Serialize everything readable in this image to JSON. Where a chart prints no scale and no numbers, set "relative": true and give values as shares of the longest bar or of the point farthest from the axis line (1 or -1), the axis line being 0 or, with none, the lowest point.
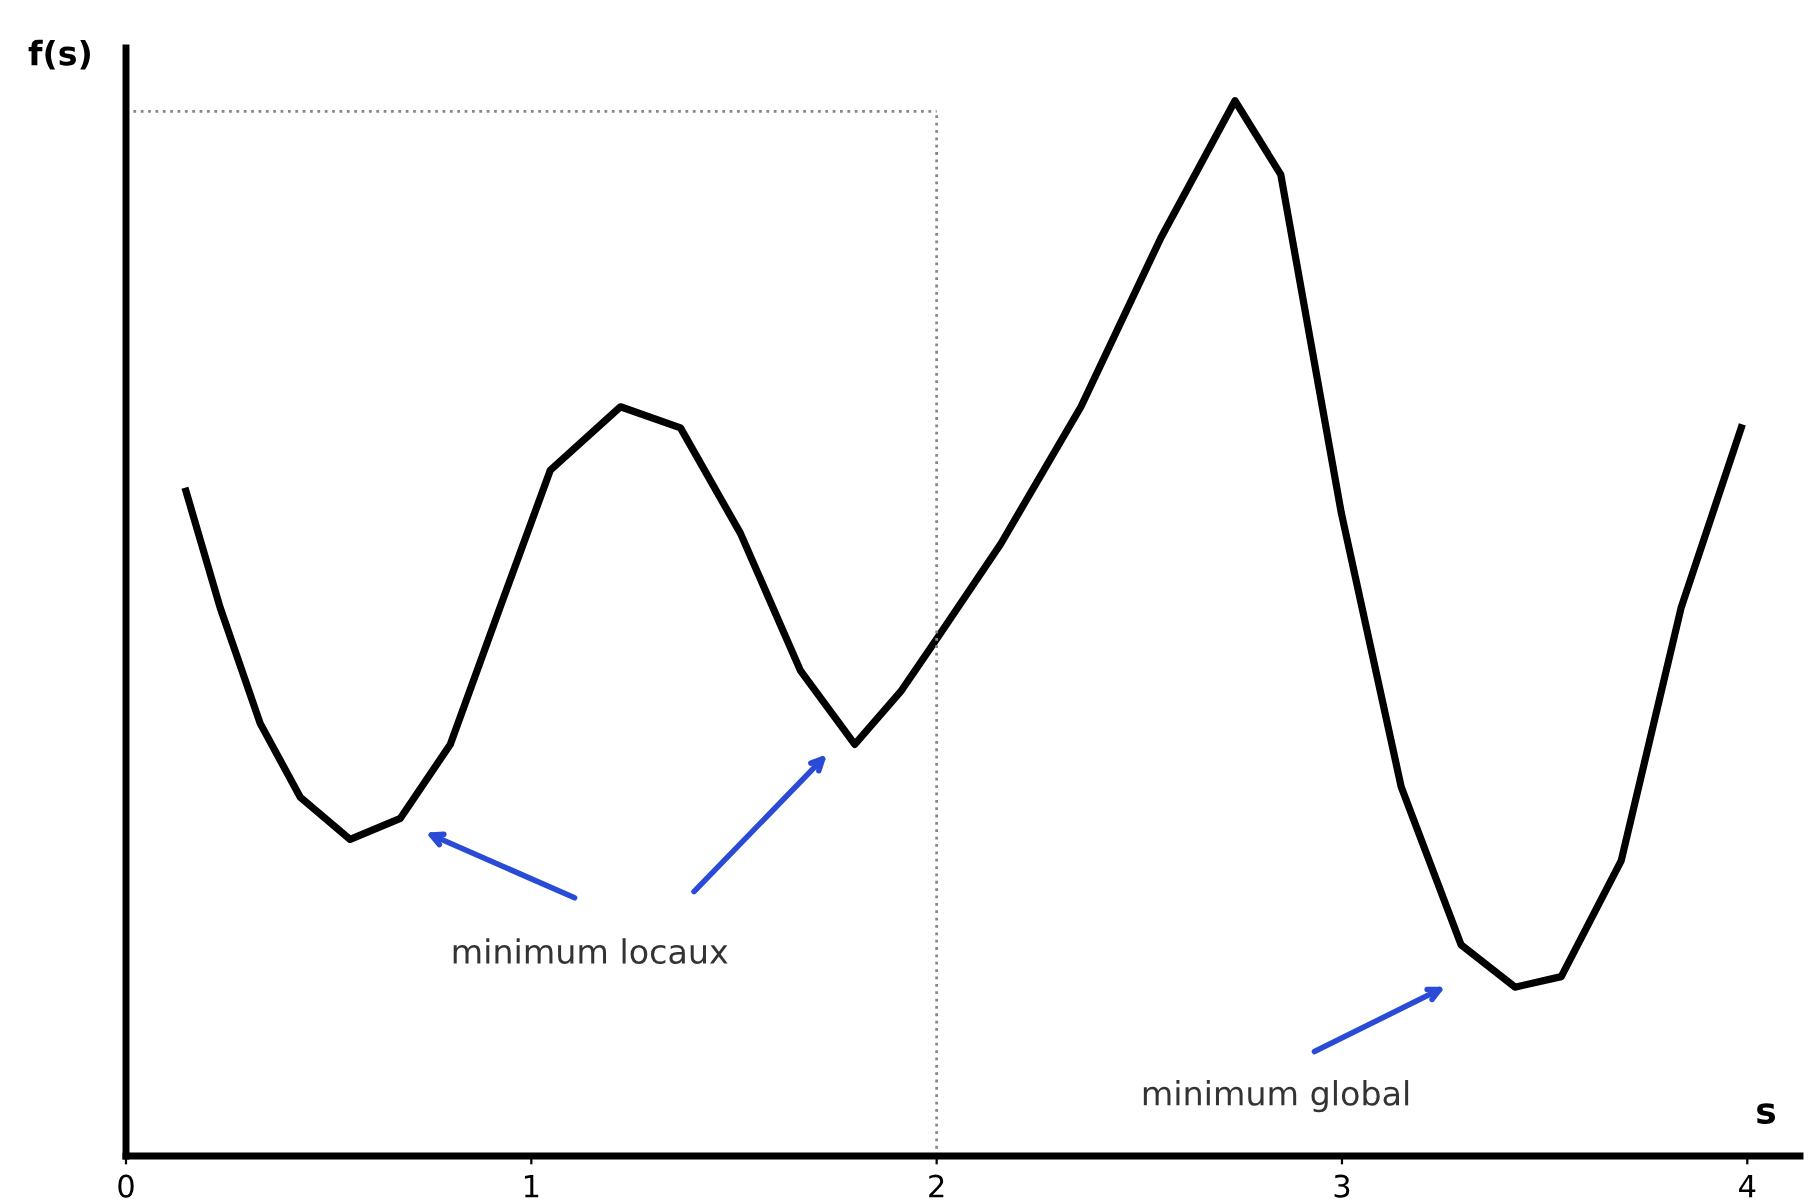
{
  "chart_data": {
    "type": "line",
    "xlabel": "s",
    "ylabel": "f(s)",
    "relative": true,
    "xlim": [
      0,
      4.13
    ],
    "xticks": [
      0,
      1,
      2,
      3,
      4
    ],
    "grid": false,
    "marker": "none",
    "line_style": "solid",
    "series": [
      {
        "color": "#000000",
        "x": [
          0.148,
          0.232,
          0.331,
          0.43,
          0.553,
          0.677,
          0.8,
          0.923,
          1.047,
          1.22,
          1.368,
          1.516,
          1.664,
          1.798,
          1.911,
          2.0,
          2.158,
          2.356,
          2.553,
          2.736,
          2.849,
          2.998,
          3.146,
          3.294,
          3.427,
          3.541,
          3.689,
          3.837,
          3.985
        ],
        "values": [
          0.63,
          0.52,
          0.41,
          0.34,
          0.3,
          0.32,
          0.39,
          0.52,
          0.65,
          0.71,
          0.69,
          0.59,
          0.46,
          0.39,
          0.44,
          0.49,
          0.58,
          0.71,
          0.87,
          1.0,
          0.93,
          0.61,
          0.35,
          0.2,
          0.16,
          0.17,
          0.28,
          0.52,
          0.69
        ]
      }
    ],
    "ref_lines": [
      {
        "axis": "x",
        "value": 2,
        "color": "#888888",
        "line_style": "dotted"
      },
      {
        "axis": "y",
        "value": 0.99,
        "color": "#888888",
        "line_style": "dotted"
      }
    ],
    "annotations": [
      "minimum locaux",
      "minimum global"
    ]
  }
}
